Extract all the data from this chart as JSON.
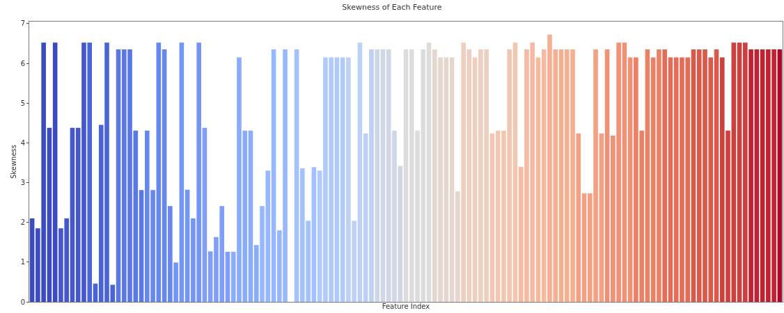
{
  "chart_data": {
    "type": "bar",
    "title": "Skewness of Each Feature",
    "xlabel": "Feature Index",
    "ylabel": "Skewness",
    "categories": [
      null,
      null,
      null,
      null,
      null,
      null,
      null,
      null,
      null,
      null,
      null,
      null,
      null,
      null,
      null,
      null,
      null,
      null,
      null,
      null,
      null,
      null,
      null,
      null,
      null,
      null,
      null,
      null,
      null,
      null,
      null,
      null,
      null,
      null,
      null,
      null,
      null,
      null,
      null,
      null,
      null,
      null,
      null,
      null,
      null,
      null,
      null,
      null,
      null,
      null,
      null,
      null,
      null,
      null,
      null,
      null,
      null,
      null,
      null,
      null,
      null,
      null,
      null,
      null,
      null,
      null,
      null,
      null,
      null,
      null,
      null,
      null,
      null,
      null,
      null,
      null,
      null,
      null,
      null,
      null,
      null,
      null,
      null,
      null,
      null,
      null,
      null,
      null,
      null,
      null,
      null,
      null,
      null,
      null,
      null,
      null,
      null,
      null,
      null,
      null,
      null,
      null,
      null,
      null,
      null,
      null,
      null,
      null,
      null,
      null,
      null,
      null,
      null,
      null,
      null,
      null,
      null,
      null,
      null,
      null,
      null,
      null,
      null,
      null,
      null,
      null,
      null,
      null,
      null,
      null,
      null
    ],
    "values": [
      2.1,
      1.85,
      6.52,
      4.38,
      6.52,
      1.85,
      2.1,
      4.38,
      4.38,
      6.52,
      6.52,
      0.46,
      4.45,
      6.52,
      0.43,
      6.35,
      6.35,
      6.35,
      4.31,
      2.81,
      4.31,
      2.81,
      6.52,
      6.35,
      2.41,
      0.99,
      6.52,
      2.82,
      2.1,
      6.52,
      4.38,
      1.27,
      1.63,
      2.41,
      1.26,
      1.26,
      6.15,
      4.31,
      4.31,
      1.43,
      2.41,
      3.3,
      6.35,
      1.8,
      6.35,
      0,
      6.35,
      3.36,
      2.04,
      3.39,
      3.3,
      6.15,
      6.15,
      6.15,
      6.15,
      6.15,
      2.04,
      6.52,
      4.24,
      6.35,
      6.35,
      6.35,
      6.35,
      4.31,
      3.42,
      6.35,
      6.35,
      4.31,
      6.35,
      6.52,
      6.35,
      6.15,
      6.15,
      6.15,
      2.78,
      6.52,
      6.35,
      6.15,
      6.35,
      6.35,
      4.24,
      4.31,
      4.31,
      6.35,
      6.52,
      3.4,
      6.35,
      6.52,
      6.15,
      6.35,
      6.72,
      6.35,
      6.35,
      6.35,
      6.35,
      4.24,
      2.73,
      2.73,
      6.35,
      4.24,
      6.35,
      4.18,
      6.52,
      6.52,
      6.15,
      6.15,
      4.31,
      6.35,
      6.15,
      6.35,
      6.35,
      6.15,
      6.15,
      6.15,
      6.15,
      6.35,
      6.35,
      6.35,
      6.15,
      6.35,
      6.15,
      4.31,
      6.52,
      6.52,
      6.52,
      6.35,
      6.35,
      6.35,
      6.35,
      6.35,
      6.35
    ],
    "colors": [
      "#3b4cc0",
      "#3b4cc0",
      "#3b4cc0",
      "#3b4cc0",
      "#3b4cc0",
      "#4557ca",
      "#4557ca",
      "#4557ca",
      "#4557ca",
      "#4557ca",
      "#4b64d5",
      "#4b64d5",
      "#4b64d5",
      "#4b64d5",
      "#4b64d5",
      "#5a78e4",
      "#5a78e4",
      "#5a78e4",
      "#5a78e4",
      "#5a78e4",
      "#6687ed",
      "#6687ed",
      "#6687ed",
      "#6687ed",
      "#6687ed",
      "#7395f5",
      "#7395f5",
      "#7395f5",
      "#7395f5",
      "#7395f5",
      "#7e9ef9",
      "#7e9ef9",
      "#7e9ef9",
      "#7e9ef9",
      "#7e9ef9",
      "#8aacfc",
      "#8aacfc",
      "#8aacfc",
      "#8aacfc",
      "#8aacfc",
      "#97b8fe",
      "#97b8fe",
      "#97b8fe",
      "#97b8fe",
      "#97b8fe",
      "#a3c1fd",
      "#a3c1fd",
      "#a3c1fd",
      "#a3c1fd",
      "#a3c1fd",
      "#b0cafb",
      "#b0cafb",
      "#b0cafb",
      "#b0cafb",
      "#b0cafb",
      "#bed0f3",
      "#bed0f3",
      "#bed0f3",
      "#bed0f3",
      "#bed0f3",
      "#ced6e7",
      "#ced6e7",
      "#ced6e7",
      "#ced6e7",
      "#ced6e7",
      "#dddcdc",
      "#dddcdc",
      "#dddcdc",
      "#dddcdc",
      "#dddcdc",
      "#e5d6ce",
      "#e5d6ce",
      "#e5d6ce",
      "#e5d6ce",
      "#e5d6ce",
      "#edcfbf",
      "#edcfbf",
      "#edcfbf",
      "#edcfbf",
      "#edcfbf",
      "#f3c6b1",
      "#f3c6b1",
      "#f3c6b1",
      "#f3c6b1",
      "#f3c6b1",
      "#f5baa1",
      "#f5baa1",
      "#f5baa1",
      "#f5baa1",
      "#f5baa1",
      "#f7af91",
      "#f7af91",
      "#f7af91",
      "#f7af91",
      "#f7af91",
      "#f4a082",
      "#f4a082",
      "#f4a082",
      "#f4a082",
      "#f4a082",
      "#f19074",
      "#f19074",
      "#f19074",
      "#f19074",
      "#f19074",
      "#ec8065",
      "#ec8065",
      "#ec8065",
      "#ec8065",
      "#ec8065",
      "#e36d57",
      "#e36d57",
      "#e36d57",
      "#e36d57",
      "#e36d57",
      "#da5949",
      "#da5949",
      "#da5949",
      "#da5949",
      "#da5949",
      "#ce403d",
      "#ce403d",
      "#ce403d",
      "#ce403d",
      "#ce403d",
      "#c12231",
      "#c12231",
      "#c12231",
      "#c12231",
      "#c12231",
      "#b40426"
    ],
    "ylim": [
      0,
      7.05
    ],
    "yticks": [
      0,
      1,
      2,
      3,
      4,
      5,
      6,
      7
    ],
    "tick_labels": "y"
  }
}
